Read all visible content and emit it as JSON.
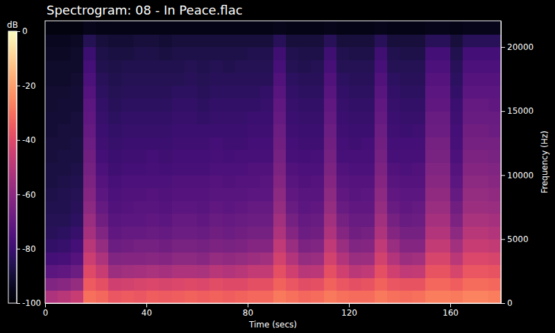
{
  "chart_data": {
    "type": "heatmap",
    "title": "Spectrogram: 08 - In Peace.flac",
    "x_label": "Time (secs)",
    "y_label": "Frequency (Hz)",
    "xlim": [
      0,
      180
    ],
    "xticks": [
      0,
      40,
      80,
      120,
      160
    ],
    "ylim": [
      0,
      22050
    ],
    "yticks": [
      0,
      5000,
      10000,
      15000,
      20000
    ],
    "color": "magma",
    "x_bins": [
      0,
      5,
      10,
      15,
      20,
      25,
      30,
      35,
      40,
      45,
      50,
      55,
      60,
      65,
      70,
      75,
      80,
      85,
      90,
      95,
      100,
      105,
      110,
      115,
      120,
      125,
      130,
      135,
      140,
      145,
      150,
      155,
      160,
      165,
      170,
      175,
      180
    ],
    "y_bins": [
      0,
      1000,
      2000,
      3000,
      4000,
      5000,
      6000,
      7000,
      8000,
      9000,
      10000,
      11000,
      12000,
      13000,
      14000,
      15000,
      16000,
      17000,
      18000,
      19000,
      20000,
      21000,
      22050
    ],
    "cells": [
      [
        -52,
        -63,
        -72,
        -78,
        -82,
        -84,
        -85,
        -86,
        -87,
        -88,
        -88,
        -89,
        -89,
        -90,
        -90,
        -91,
        -91,
        -92,
        -92,
        -93,
        -94,
        -97
      ],
      [
        -50,
        -61,
        -71,
        -77,
        -81,
        -83,
        -85,
        -86,
        -86,
        -87,
        -88,
        -88,
        -89,
        -89,
        -90,
        -90,
        -91,
        -92,
        -92,
        -93,
        -94,
        -97
      ],
      [
        -46,
        -58,
        -68,
        -74,
        -78,
        -81,
        -83,
        -84,
        -85,
        -86,
        -87,
        -88,
        -88,
        -89,
        -89,
        -90,
        -90,
        -91,
        -92,
        -92,
        -93,
        -97
      ],
      [
        -30,
        -35,
        -40,
        -45,
        -50,
        -54,
        -57,
        -60,
        -62,
        -64,
        -66,
        -67,
        -68,
        -70,
        -71,
        -72,
        -74,
        -76,
        -78,
        -80,
        -85,
        -95
      ],
      [
        -32,
        -38,
        -46,
        -52,
        -58,
        -63,
        -67,
        -70,
        -72,
        -74,
        -76,
        -78,
        -79,
        -80,
        -81,
        -82,
        -83,
        -84,
        -86,
        -87,
        -89,
        -96
      ],
      [
        -36,
        -44,
        -56,
        -63,
        -68,
        -71,
        -73,
        -75,
        -76,
        -77,
        -79,
        -80,
        -81,
        -82,
        -83,
        -84,
        -85,
        -86,
        -87,
        -88,
        -90,
        -96
      ],
      [
        -35,
        -43,
        -55,
        -62,
        -67,
        -70,
        -72,
        -74,
        -75,
        -76,
        -78,
        -79,
        -80,
        -81,
        -82,
        -83,
        -84,
        -85,
        -86,
        -88,
        -90,
        -96
      ],
      [
        -36,
        -42,
        -54,
        -62,
        -66,
        -70,
        -72,
        -73,
        -75,
        -76,
        -78,
        -79,
        -80,
        -81,
        -82,
        -83,
        -84,
        -85,
        -86,
        -87,
        -89,
        -96
      ],
      [
        -34,
        -41,
        -53,
        -61,
        -66,
        -69,
        -71,
        -73,
        -74,
        -76,
        -77,
        -78,
        -80,
        -81,
        -82,
        -83,
        -84,
        -85,
        -86,
        -87,
        -89,
        -96
      ],
      [
        -35,
        -42,
        -54,
        -62,
        -67,
        -70,
        -72,
        -74,
        -75,
        -76,
        -78,
        -79,
        -80,
        -81,
        -82,
        -83,
        -84,
        -85,
        -86,
        -88,
        -90,
        -96
      ],
      [
        -34,
        -41,
        -52,
        -60,
        -65,
        -68,
        -70,
        -72,
        -74,
        -75,
        -77,
        -78,
        -79,
        -80,
        -81,
        -82,
        -83,
        -85,
        -86,
        -87,
        -89,
        -96
      ],
      [
        -33,
        -40,
        -52,
        -60,
        -65,
        -68,
        -70,
        -72,
        -74,
        -75,
        -77,
        -78,
        -79,
        -80,
        -81,
        -82,
        -83,
        -84,
        -85,
        -87,
        -89,
        -96
      ],
      [
        -34,
        -41,
        -53,
        -61,
        -66,
        -69,
        -71,
        -73,
        -74,
        -75,
        -77,
        -78,
        -79,
        -80,
        -82,
        -83,
        -84,
        -85,
        -86,
        -87,
        -89,
        -96
      ],
      [
        -33,
        -39,
        -50,
        -58,
        -64,
        -67,
        -69,
        -71,
        -73,
        -74,
        -76,
        -77,
        -78,
        -80,
        -81,
        -82,
        -83,
        -84,
        -85,
        -87,
        -89,
        -96
      ],
      [
        -34,
        -40,
        -51,
        -59,
        -65,
        -68,
        -70,
        -72,
        -73,
        -75,
        -76,
        -78,
        -79,
        -80,
        -81,
        -82,
        -83,
        -84,
        -86,
        -87,
        -89,
        -96
      ],
      [
        -33,
        -40,
        -50,
        -58,
        -64,
        -67,
        -69,
        -71,
        -73,
        -74,
        -76,
        -77,
        -79,
        -80,
        -81,
        -82,
        -83,
        -84,
        -85,
        -87,
        -89,
        -96
      ],
      [
        -32,
        -38,
        -47,
        -56,
        -62,
        -66,
        -68,
        -70,
        -72,
        -74,
        -75,
        -77,
        -78,
        -79,
        -80,
        -82,
        -83,
        -84,
        -85,
        -86,
        -89,
        -96
      ],
      [
        -32,
        -38,
        -47,
        -55,
        -62,
        -66,
        -68,
        -70,
        -72,
        -73,
        -75,
        -77,
        -78,
        -79,
        -80,
        -81,
        -82,
        -84,
        -85,
        -86,
        -89,
        -96
      ],
      [
        -28,
        -33,
        -38,
        -43,
        -48,
        -52,
        -55,
        -58,
        -60,
        -62,
        -64,
        -66,
        -67,
        -68,
        -70,
        -71,
        -73,
        -75,
        -77,
        -79,
        -84,
        -95
      ],
      [
        -30,
        -36,
        -44,
        -51,
        -57,
        -62,
        -66,
        -69,
        -71,
        -73,
        -75,
        -77,
        -78,
        -79,
        -80,
        -81,
        -82,
        -83,
        -85,
        -86,
        -89,
        -96
      ],
      [
        -32,
        -39,
        -50,
        -58,
        -64,
        -68,
        -70,
        -72,
        -73,
        -75,
        -76,
        -78,
        -79,
        -80,
        -81,
        -82,
        -83,
        -84,
        -86,
        -87,
        -89,
        -96
      ],
      [
        -31,
        -38,
        -49,
        -57,
        -63,
        -67,
        -69,
        -71,
        -73,
        -74,
        -76,
        -77,
        -79,
        -80,
        -81,
        -82,
        -83,
        -84,
        -85,
        -87,
        -89,
        -96
      ],
      [
        -28,
        -33,
        -38,
        -43,
        -48,
        -52,
        -55,
        -58,
        -60,
        -62,
        -64,
        -66,
        -67,
        -68,
        -70,
        -71,
        -73,
        -75,
        -77,
        -79,
        -84,
        -95
      ],
      [
        -30,
        -36,
        -44,
        -51,
        -57,
        -62,
        -66,
        -69,
        -71,
        -73,
        -75,
        -77,
        -78,
        -79,
        -80,
        -81,
        -82,
        -83,
        -85,
        -86,
        -89,
        -96
      ],
      [
        -31,
        -38,
        -49,
        -57,
        -63,
        -67,
        -69,
        -71,
        -73,
        -74,
        -76,
        -77,
        -79,
        -80,
        -81,
        -82,
        -83,
        -84,
        -85,
        -87,
        -89,
        -96
      ],
      [
        -31,
        -37,
        -48,
        -56,
        -62,
        -66,
        -69,
        -71,
        -72,
        -74,
        -76,
        -77,
        -78,
        -80,
        -81,
        -82,
        -83,
        -84,
        -85,
        -87,
        -89,
        -96
      ],
      [
        -28,
        -33,
        -38,
        -43,
        -48,
        -52,
        -55,
        -58,
        -60,
        -62,
        -64,
        -66,
        -67,
        -68,
        -70,
        -71,
        -73,
        -75,
        -77,
        -79,
        -84,
        -95
      ],
      [
        -30,
        -36,
        -44,
        -51,
        -57,
        -62,
        -66,
        -69,
        -71,
        -73,
        -75,
        -77,
        -78,
        -79,
        -80,
        -81,
        -82,
        -83,
        -85,
        -86,
        -89,
        -96
      ],
      [
        -31,
        -37,
        -48,
        -56,
        -62,
        -66,
        -69,
        -71,
        -72,
        -74,
        -76,
        -77,
        -78,
        -80,
        -81,
        -82,
        -83,
        -84,
        -85,
        -87,
        -89,
        -96
      ],
      [
        -30,
        -37,
        -47,
        -55,
        -62,
        -66,
        -68,
        -70,
        -72,
        -74,
        -75,
        -77,
        -78,
        -79,
        -81,
        -82,
        -83,
        -84,
        -85,
        -87,
        -89,
        -96
      ],
      [
        -27,
        -32,
        -37,
        -42,
        -47,
        -51,
        -54,
        -57,
        -59,
        -61,
        -63,
        -65,
        -66,
        -68,
        -69,
        -71,
        -72,
        -74,
        -76,
        -78,
        -84,
        -95
      ],
      [
        -27,
        -32,
        -37,
        -42,
        -47,
        -51,
        -54,
        -57,
        -59,
        -61,
        -63,
        -65,
        -66,
        -68,
        -69,
        -71,
        -72,
        -74,
        -76,
        -78,
        -84,
        -95
      ],
      [
        -28,
        -34,
        -42,
        -49,
        -55,
        -60,
        -64,
        -67,
        -70,
        -72,
        -74,
        -76,
        -77,
        -78,
        -79,
        -80,
        -82,
        -83,
        -84,
        -86,
        -89,
        -96
      ],
      [
        -26,
        -31,
        -36,
        -41,
        -46,
        -50,
        -53,
        -56,
        -58,
        -60,
        -62,
        -64,
        -66,
        -67,
        -69,
        -70,
        -72,
        -74,
        -76,
        -78,
        -84,
        -95
      ],
      [
        -26,
        -31,
        -36,
        -41,
        -46,
        -50,
        -53,
        -56,
        -58,
        -60,
        -62,
        -64,
        -66,
        -67,
        -69,
        -70,
        -72,
        -74,
        -76,
        -78,
        -84,
        -95
      ],
      [
        -27,
        -32,
        -37,
        -42,
        -47,
        -51,
        -54,
        -57,
        -59,
        -61,
        -63,
        -65,
        -66,
        -68,
        -69,
        -71,
        -72,
        -74,
        -76,
        -78,
        -84,
        -95
      ]
    ],
    "colorbar": {
      "label": "dB",
      "range": [
        -100,
        0
      ],
      "ticks": [
        0,
        -20,
        -40,
        -60,
        -80,
        -100
      ]
    }
  }
}
